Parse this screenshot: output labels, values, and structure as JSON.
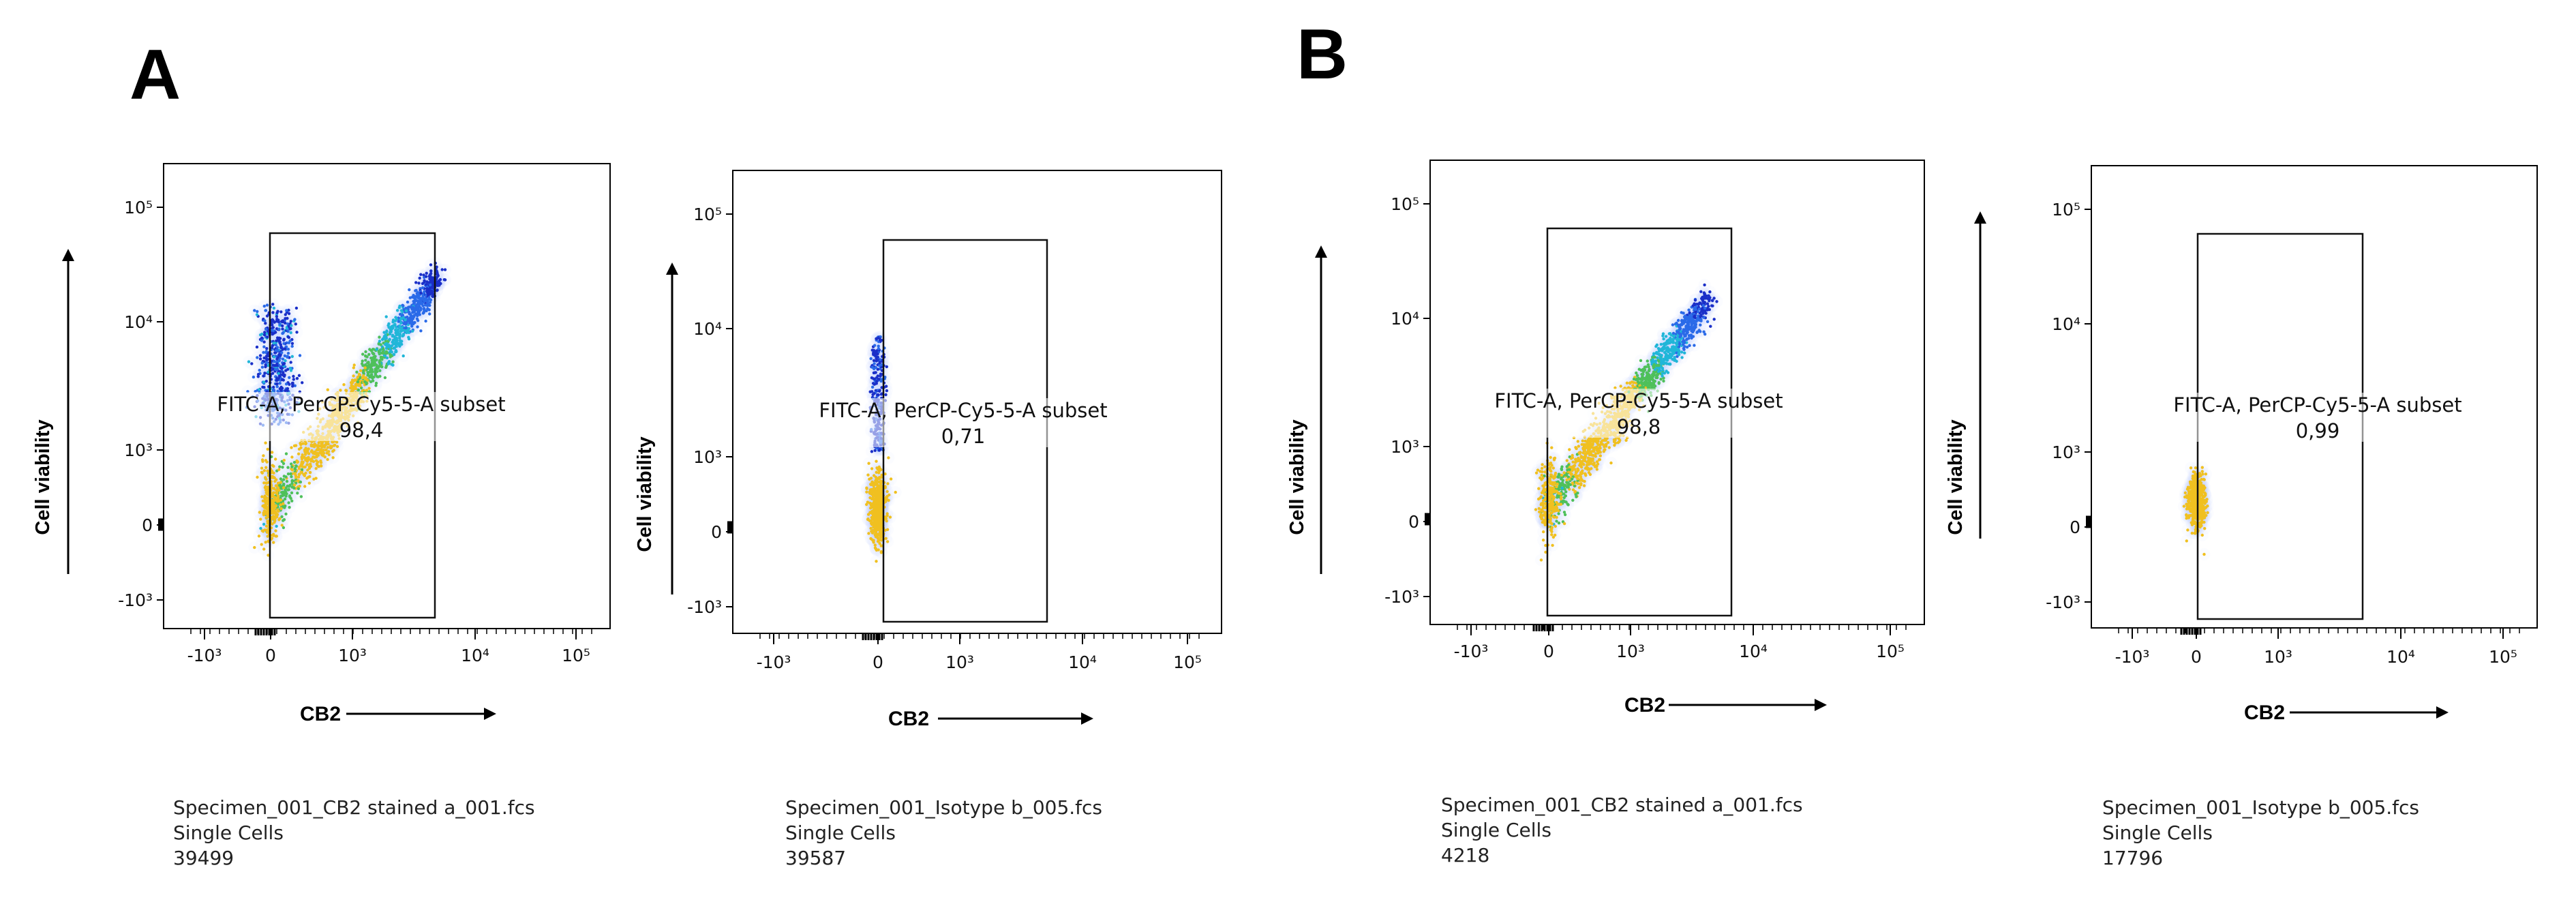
{
  "panel_labels": [
    "A",
    "B"
  ],
  "chart_data": [
    {
      "type": "scatter",
      "subtype": "flow-cytometry-density",
      "panel": "A",
      "xlabel": "CB2",
      "ylabel": "Cell viability",
      "x_ticks": [
        "-10³",
        "0",
        "10³",
        "10⁴",
        "10⁵"
      ],
      "y_ticks": [
        "10⁵",
        "10⁴",
        "10³",
        "0",
        "-10³"
      ],
      "gate": {
        "label": "FITC-A, PerCP-Cy5-5-A subset",
        "value": "98,4"
      },
      "population": "stained-diagonal-with-vertical-spread",
      "file": "Specimen_001_CB2 stained a_001.fcs",
      "subset": "Single Cells",
      "count": "39499"
    },
    {
      "type": "scatter",
      "subtype": "flow-cytometry-density",
      "panel": "A",
      "xlabel": "CB2",
      "ylabel": "Cell viability",
      "x_ticks": [
        "-10³",
        "0",
        "10³",
        "10⁴",
        "10⁵"
      ],
      "y_ticks": [
        "10⁵",
        "10⁴",
        "10³",
        "0",
        "-10³"
      ],
      "gate": {
        "label": "FITC-A, PerCP-Cy5-5-A subset",
        "value": "0,71"
      },
      "population": "isotype-tall-cluster-at-zero",
      "file": "Specimen_001_Isotype b_005.fcs",
      "subset": "Single Cells",
      "count": "39587"
    },
    {
      "type": "scatter",
      "subtype": "flow-cytometry-density",
      "panel": "B",
      "xlabel": "CB2",
      "ylabel": "Cell viability",
      "x_ticks": [
        "-10³",
        "0",
        "10³",
        "10⁴",
        "10⁵"
      ],
      "y_ticks": [
        "10⁵",
        "10⁴",
        "10³",
        "0",
        "-10³"
      ],
      "gate": {
        "label": "FITC-A, PerCP-Cy5-5-A subset",
        "value": "98,8"
      },
      "population": "stained-diagonal",
      "file": "Specimen_001_CB2 stained a_001.fcs",
      "subset": "Single Cells",
      "count": "4218"
    },
    {
      "type": "scatter",
      "subtype": "flow-cytometry-density",
      "panel": "B",
      "xlabel": "CB2",
      "ylabel": "Cell viability",
      "x_ticks": [
        "-10³",
        "0",
        "10³",
        "10⁴",
        "10⁵"
      ],
      "y_ticks": [
        "10⁵",
        "10⁴",
        "10³",
        "0",
        "-10³"
      ],
      "gate": {
        "label": "FITC-A, PerCP-Cy5-5-A subset",
        "value": "0,99"
      },
      "population": "isotype-small-cluster-at-zero",
      "file": "Specimen_001_Isotype b_005.fcs",
      "subset": "Single Cells",
      "count": "17796"
    }
  ]
}
